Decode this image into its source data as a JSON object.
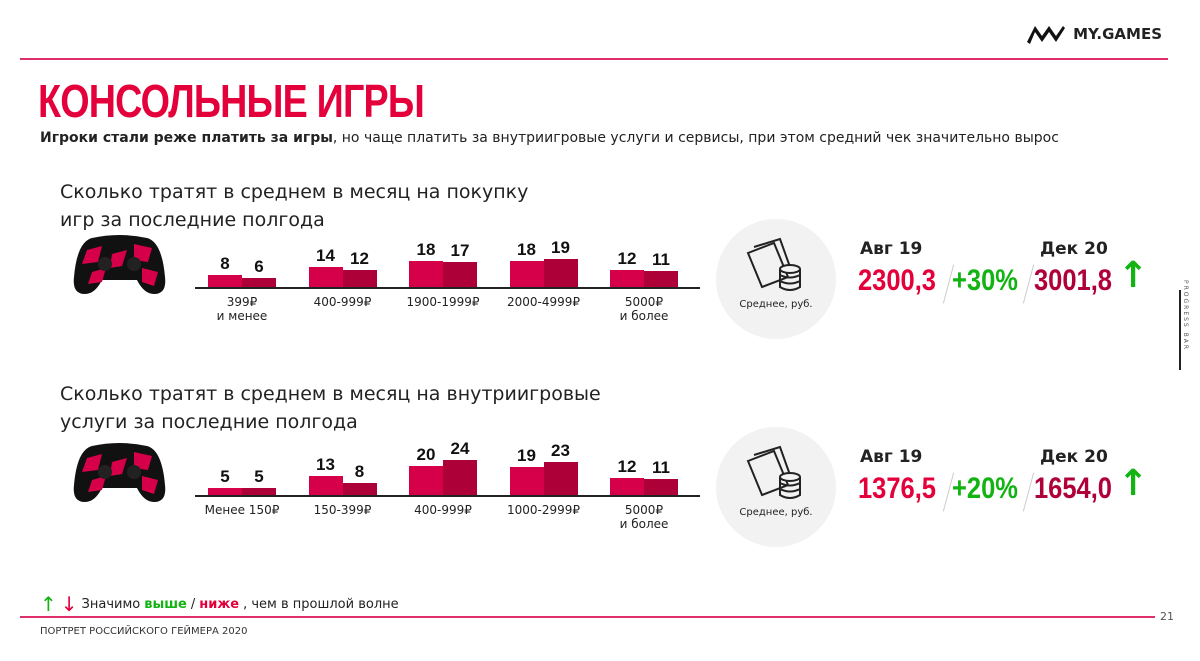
{
  "brand": "MY.GAMES",
  "title": "Консольные игры",
  "subtitle": {
    "bold": "Игроки стали реже платить за игры",
    "rest": ", но чаще платить за внутриигровые услуги и сервисы, при этом средний чек значительно вырос"
  },
  "colors": {
    "accent": "#e4003b",
    "bar_aug19": "#d6004a",
    "bar_dec20": "#ad0038",
    "up": "#13b313",
    "down": "#e4003b"
  },
  "sections": [
    {
      "question": [
        "Сколько тратят в среднем в месяц на покупку",
        "игр за последние полгода"
      ],
      "chart_data": {
        "type": "bar",
        "series": [
          {
            "name": "Авг 19",
            "values": [
              8,
              14,
              18,
              18,
              12
            ]
          },
          {
            "name": "Дек 20",
            "values": [
              6,
              12,
              17,
              19,
              11
            ]
          }
        ],
        "categories": [
          [
            "399₽",
            "и менее"
          ],
          [
            "400-999₽",
            ""
          ],
          [
            "1900-1999₽",
            ""
          ],
          [
            "2000-4999₽",
            ""
          ],
          [
            "5000₽",
            "и более"
          ]
        ]
      },
      "avg": {
        "label": "Среднее, руб.",
        "p1": "Авг 19",
        "p2": "Дек 20",
        "v1": "2300,3",
        "change": "+30%",
        "v2": "3001,8",
        "arrow": "↑"
      }
    },
    {
      "question": [
        "Сколько тратят в среднем в месяц на внутриигровые",
        "услуги за последние полгода"
      ],
      "chart_data": {
        "type": "bar",
        "series": [
          {
            "name": "Авг 19",
            "values": [
              5,
              13,
              20,
              19,
              12
            ]
          },
          {
            "name": "Дек 20",
            "values": [
              5,
              8,
              24,
              23,
              11
            ]
          }
        ],
        "categories": [
          [
            "Менее 150₽",
            ""
          ],
          [
            "150-399₽",
            ""
          ],
          [
            "400-999₽",
            ""
          ],
          [
            "1000-2999₽",
            ""
          ],
          [
            "5000₽",
            "и более"
          ]
        ]
      },
      "avg": {
        "label": "Среднее, руб.",
        "p1": "Авг 19",
        "p2": "Дек 20",
        "v1": "1376,5",
        "change": "+20%",
        "v2": "1654,0",
        "arrow": "↑"
      }
    }
  ],
  "legend": {
    "up": "↑",
    "down": "↓",
    "text1": "Значимо ",
    "higher": "выше",
    "sep": "/",
    "lower": "ниже",
    "text2": ", чем в прошлой волне"
  },
  "footer": "ПОРТРЕТ РОССИЙСКОГО ГЕЙМЕРА 2020",
  "page": "21",
  "progress_label": "PROGRESS BAR"
}
